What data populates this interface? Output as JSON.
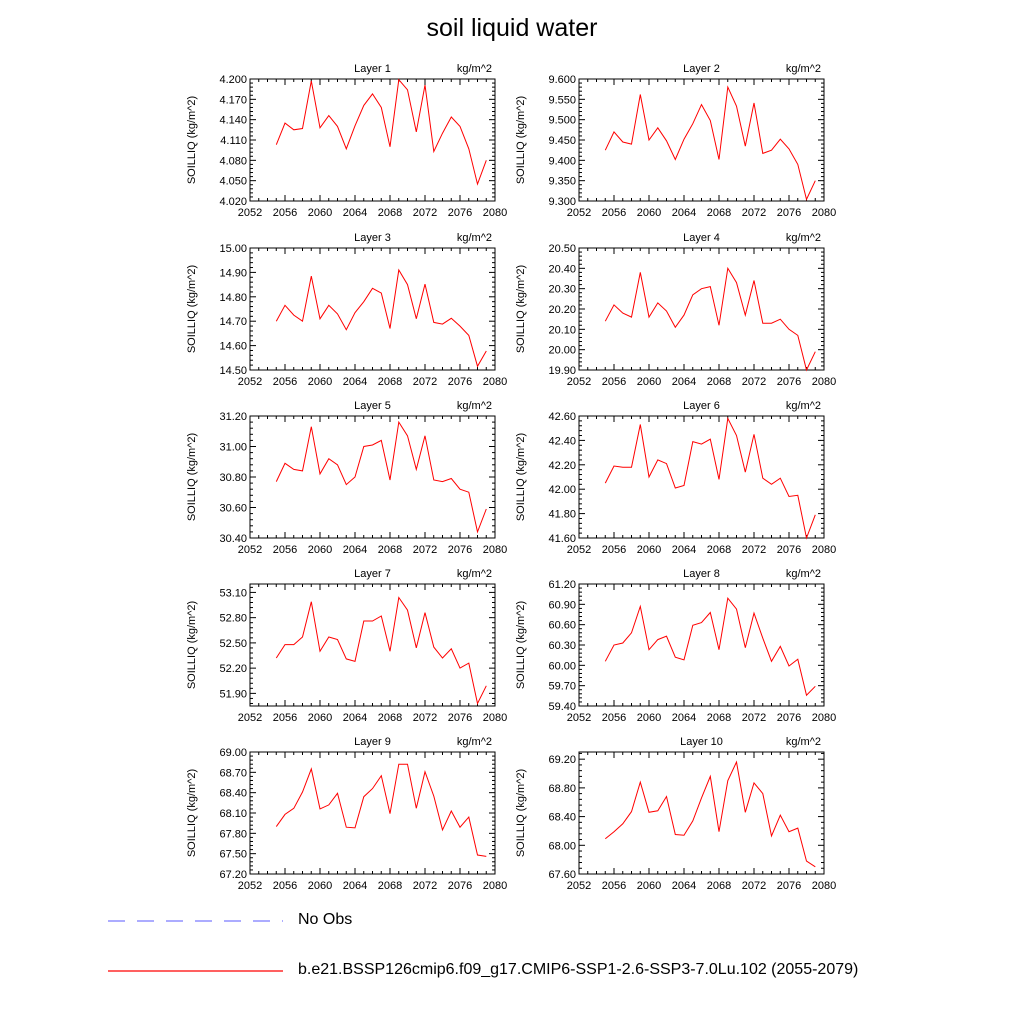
{
  "title": "soil liquid water",
  "legend": {
    "obs_label": "No Obs",
    "obs_color": "#7b7bff",
    "case_label": "b.e21.BSSP126cmip6.f09_g17.CMIP6-SSP1-2.6-SSP3-7.0Lu.102 (2055-2079)",
    "case_color": "#ff0000"
  },
  "chart_data": [
    {
      "type": "line",
      "title": "Layer 1",
      "units": "kg/m^2",
      "ylabel": "SOILLIQ  (kg/m^2)",
      "xlim": [
        2052,
        2080
      ],
      "xticks": [
        "2052",
        "2056",
        "2060",
        "2064",
        "2068",
        "2072",
        "2076",
        "2080"
      ],
      "ylim": [
        4.02,
        4.2
      ],
      "yticks": [
        "4.020",
        "4.050",
        "4.080",
        "4.110",
        "4.140",
        "4.170",
        "4.200"
      ],
      "series": [
        {
          "color": "#ff0000",
          "x": [
            2055,
            2056,
            2057,
            2058,
            2059,
            2060,
            2061,
            2062,
            2063,
            2064,
            2065,
            2066,
            2067,
            2068,
            2069,
            2070,
            2071,
            2072,
            2073,
            2074,
            2075,
            2076,
            2077,
            2078,
            2079
          ],
          "y": [
            4.103,
            4.135,
            4.125,
            4.127,
            4.197,
            4.128,
            4.146,
            4.13,
            4.097,
            4.131,
            4.161,
            4.178,
            4.158,
            4.1,
            4.199,
            4.184,
            4.122,
            4.191,
            4.093,
            4.12,
            4.144,
            4.13,
            4.097,
            4.045,
            4.08
          ]
        }
      ]
    },
    {
      "type": "line",
      "title": "Layer 2",
      "units": "kg/m^2",
      "ylabel": "SOILLIQ  (kg/m^2)",
      "xlim": [
        2052,
        2080
      ],
      "xticks": [
        "2052",
        "2056",
        "2060",
        "2064",
        "2068",
        "2072",
        "2076",
        "2080"
      ],
      "ylim": [
        9.3,
        9.6
      ],
      "yticks": [
        "9.300",
        "9.350",
        "9.400",
        "9.450",
        "9.500",
        "9.550",
        "9.600"
      ],
      "series": [
        {
          "color": "#ff0000",
          "x": [
            2055,
            2056,
            2057,
            2058,
            2059,
            2060,
            2061,
            2062,
            2063,
            2064,
            2065,
            2066,
            2067,
            2068,
            2069,
            2070,
            2071,
            2072,
            2073,
            2074,
            2075,
            2076,
            2077,
            2078,
            2079
          ],
          "y": [
            9.425,
            9.47,
            9.445,
            9.44,
            9.562,
            9.45,
            9.48,
            9.448,
            9.402,
            9.452,
            9.49,
            9.537,
            9.498,
            9.402,
            9.58,
            9.533,
            9.435,
            9.541,
            9.417,
            9.425,
            9.452,
            9.428,
            9.39,
            9.304,
            9.35
          ]
        }
      ]
    },
    {
      "type": "line",
      "title": "Layer 3",
      "units": "kg/m^2",
      "ylabel": "SOILLIQ  (kg/m^2)",
      "xlim": [
        2052,
        2080
      ],
      "xticks": [
        "2052",
        "2056",
        "2060",
        "2064",
        "2068",
        "2072",
        "2076",
        "2080"
      ],
      "ylim": [
        14.5,
        15.0
      ],
      "yticks": [
        "14.50",
        "14.60",
        "14.70",
        "14.80",
        "14.90",
        "15.00"
      ],
      "series": [
        {
          "color": "#ff0000",
          "x": [
            2055,
            2056,
            2057,
            2058,
            2059,
            2060,
            2061,
            2062,
            2063,
            2064,
            2065,
            2066,
            2067,
            2068,
            2069,
            2070,
            2071,
            2072,
            2073,
            2074,
            2075,
            2076,
            2077,
            2078,
            2079
          ],
          "y": [
            14.7,
            14.765,
            14.725,
            14.7,
            14.885,
            14.71,
            14.765,
            14.73,
            14.665,
            14.735,
            14.78,
            14.835,
            14.815,
            14.67,
            14.91,
            14.85,
            14.71,
            14.852,
            14.695,
            14.688,
            14.712,
            14.68,
            14.642,
            14.515,
            14.578
          ]
        }
      ]
    },
    {
      "type": "line",
      "title": "Layer 4",
      "units": "kg/m^2",
      "ylabel": "SOILLIQ  (kg/m^2)",
      "xlim": [
        2052,
        2080
      ],
      "xticks": [
        "2052",
        "2056",
        "2060",
        "2064",
        "2068",
        "2072",
        "2076",
        "2080"
      ],
      "ylim": [
        19.9,
        20.5
      ],
      "yticks": [
        "19.90",
        "20.00",
        "20.10",
        "20.20",
        "20.30",
        "20.40",
        "20.50"
      ],
      "series": [
        {
          "color": "#ff0000",
          "x": [
            2055,
            2056,
            2057,
            2058,
            2059,
            2060,
            2061,
            2062,
            2063,
            2064,
            2065,
            2066,
            2067,
            2068,
            2069,
            2070,
            2071,
            2072,
            2073,
            2074,
            2075,
            2076,
            2077,
            2078,
            2079
          ],
          "y": [
            20.14,
            20.22,
            20.18,
            20.16,
            20.38,
            20.16,
            20.23,
            20.19,
            20.11,
            20.17,
            20.27,
            20.3,
            20.31,
            20.12,
            20.4,
            20.33,
            20.17,
            20.34,
            20.13,
            20.13,
            20.15,
            20.1,
            20.07,
            19.9,
            19.99
          ]
        }
      ]
    },
    {
      "type": "line",
      "title": "Layer 5",
      "units": "kg/m^2",
      "ylabel": "SOILLIQ  (kg/m^2)",
      "xlim": [
        2052,
        2080
      ],
      "xticks": [
        "2052",
        "2056",
        "2060",
        "2064",
        "2068",
        "2072",
        "2076",
        "2080"
      ],
      "ylim": [
        30.4,
        31.2
      ],
      "yticks": [
        "30.40",
        "30.60",
        "30.80",
        "31.00",
        "31.20"
      ],
      "series": [
        {
          "color": "#ff0000",
          "x": [
            2055,
            2056,
            2057,
            2058,
            2059,
            2060,
            2061,
            2062,
            2063,
            2064,
            2065,
            2066,
            2067,
            2068,
            2069,
            2070,
            2071,
            2072,
            2073,
            2074,
            2075,
            2076,
            2077,
            2078,
            2079
          ],
          "y": [
            30.77,
            30.89,
            30.85,
            30.84,
            31.13,
            30.82,
            30.92,
            30.88,
            30.75,
            30.8,
            31.0,
            31.01,
            31.04,
            30.78,
            31.16,
            31.07,
            30.85,
            31.07,
            30.78,
            30.77,
            30.79,
            30.72,
            30.7,
            30.44,
            30.59
          ]
        }
      ]
    },
    {
      "type": "line",
      "title": "Layer 6",
      "units": "kg/m^2",
      "ylabel": "SOILLIQ  (kg/m^2)",
      "xlim": [
        2052,
        2080
      ],
      "xticks": [
        "2052",
        "2056",
        "2060",
        "2064",
        "2068",
        "2072",
        "2076",
        "2080"
      ],
      "ylim": [
        41.6,
        42.6
      ],
      "yticks": [
        "41.60",
        "41.80",
        "42.00",
        "42.20",
        "42.40",
        "42.60"
      ],
      "series": [
        {
          "color": "#ff0000",
          "x": [
            2055,
            2056,
            2057,
            2058,
            2059,
            2060,
            2061,
            2062,
            2063,
            2064,
            2065,
            2066,
            2067,
            2068,
            2069,
            2070,
            2071,
            2072,
            2073,
            2074,
            2075,
            2076,
            2077,
            2078,
            2079
          ],
          "y": [
            42.05,
            42.19,
            42.18,
            42.18,
            42.53,
            42.1,
            42.24,
            42.21,
            42.01,
            42.03,
            42.39,
            42.37,
            42.41,
            42.08,
            42.58,
            42.44,
            42.14,
            42.45,
            42.09,
            42.04,
            42.09,
            41.94,
            41.95,
            41.6,
            41.79
          ]
        }
      ]
    },
    {
      "type": "line",
      "title": "Layer 7",
      "units": "kg/m^2",
      "ylabel": "SOILLIQ  (kg/m^2)",
      "xlim": [
        2052,
        2080
      ],
      "xticks": [
        "2052",
        "2056",
        "2060",
        "2064",
        "2068",
        "2072",
        "2076",
        "2080"
      ],
      "ylim": [
        51.75,
        53.2
      ],
      "yticks": [
        "51.90",
        "52.20",
        "52.50",
        "52.80",
        "53.10"
      ],
      "series": [
        {
          "color": "#ff0000",
          "x": [
            2055,
            2056,
            2057,
            2058,
            2059,
            2060,
            2061,
            2062,
            2063,
            2064,
            2065,
            2066,
            2067,
            2068,
            2069,
            2070,
            2071,
            2072,
            2073,
            2074,
            2075,
            2076,
            2077,
            2078,
            2079
          ],
          "y": [
            52.32,
            52.48,
            52.48,
            52.57,
            52.99,
            52.4,
            52.57,
            52.54,
            52.31,
            52.28,
            52.76,
            52.76,
            52.82,
            52.4,
            53.04,
            52.89,
            52.44,
            52.86,
            52.45,
            52.32,
            52.43,
            52.2,
            52.26,
            51.78,
            51.99
          ]
        }
      ]
    },
    {
      "type": "line",
      "title": "Layer 8",
      "units": "kg/m^2",
      "ylabel": "SOILLIQ  (kg/m^2)",
      "xlim": [
        2052,
        2080
      ],
      "xticks": [
        "2052",
        "2056",
        "2060",
        "2064",
        "2068",
        "2072",
        "2076",
        "2080"
      ],
      "ylim": [
        59.4,
        61.2
      ],
      "yticks": [
        "59.40",
        "59.70",
        "60.00",
        "60.30",
        "60.60",
        "60.90",
        "61.20"
      ],
      "series": [
        {
          "color": "#ff0000",
          "x": [
            2055,
            2056,
            2057,
            2058,
            2059,
            2060,
            2061,
            2062,
            2063,
            2064,
            2065,
            2066,
            2067,
            2068,
            2069,
            2070,
            2071,
            2072,
            2073,
            2074,
            2075,
            2076,
            2077,
            2078,
            2079
          ],
          "y": [
            60.06,
            60.3,
            60.33,
            60.48,
            60.87,
            60.23,
            60.38,
            60.43,
            60.12,
            60.08,
            60.59,
            60.63,
            60.78,
            60.23,
            60.99,
            60.83,
            60.26,
            60.77,
            60.4,
            60.06,
            60.28,
            59.99,
            60.09,
            59.56,
            59.69
          ]
        }
      ]
    },
    {
      "type": "line",
      "title": "Layer 9",
      "units": "kg/m^2",
      "ylabel": "SOILLIQ  (kg/m^2)",
      "xlim": [
        2052,
        2080
      ],
      "xticks": [
        "2052",
        "2056",
        "2060",
        "2064",
        "2068",
        "2072",
        "2076",
        "2080"
      ],
      "ylim": [
        67.2,
        69.0
      ],
      "yticks": [
        "67.20",
        "67.50",
        "67.80",
        "68.10",
        "68.40",
        "68.70",
        "69.00"
      ],
      "series": [
        {
          "color": "#ff0000",
          "x": [
            2055,
            2056,
            2057,
            2058,
            2059,
            2060,
            2061,
            2062,
            2063,
            2064,
            2065,
            2066,
            2067,
            2068,
            2069,
            2070,
            2071,
            2072,
            2073,
            2074,
            2075,
            2076,
            2077,
            2078,
            2079
          ],
          "y": [
            67.9,
            68.08,
            68.17,
            68.41,
            68.75,
            68.16,
            68.22,
            68.39,
            67.89,
            67.88,
            68.34,
            68.46,
            68.65,
            68.09,
            68.82,
            68.82,
            68.17,
            68.71,
            68.35,
            67.85,
            68.13,
            67.89,
            68.04,
            67.48,
            67.46
          ]
        }
      ]
    },
    {
      "type": "line",
      "title": "Layer 10",
      "units": "kg/m^2",
      "ylabel": "SOILLIQ  (kg/m^2)",
      "xlim": [
        2052,
        2080
      ],
      "xticks": [
        "2052",
        "2056",
        "2060",
        "2064",
        "2068",
        "2072",
        "2076",
        "2080"
      ],
      "ylim": [
        67.6,
        69.3
      ],
      "yticks": [
        "67.60",
        "68.00",
        "68.40",
        "68.80",
        "69.20"
      ],
      "series": [
        {
          "color": "#ff0000",
          "x": [
            2055,
            2056,
            2057,
            2058,
            2059,
            2060,
            2061,
            2062,
            2063,
            2064,
            2065,
            2066,
            2067,
            2068,
            2069,
            2070,
            2071,
            2072,
            2073,
            2074,
            2075,
            2076,
            2077,
            2078,
            2079
          ],
          "y": [
            68.09,
            68.19,
            68.3,
            68.47,
            68.88,
            68.46,
            68.48,
            68.68,
            68.15,
            68.14,
            68.34,
            68.66,
            68.96,
            68.19,
            68.9,
            69.16,
            68.46,
            68.87,
            68.72,
            68.13,
            68.42,
            68.19,
            68.24,
            67.78,
            67.7
          ]
        }
      ]
    }
  ]
}
